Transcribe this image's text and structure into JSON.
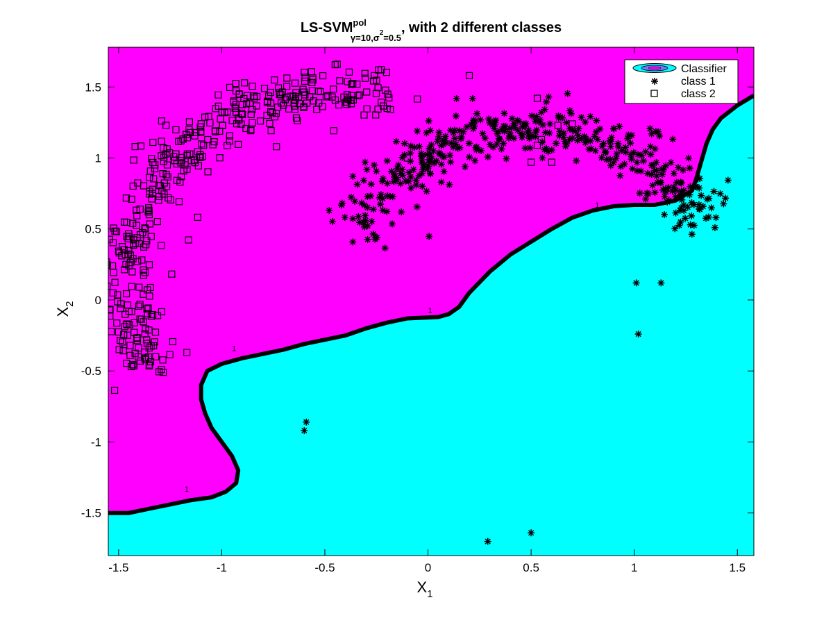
{
  "chart_data": {
    "type": "scatter",
    "title": {
      "main": "LS-SVM",
      "superscript": "pol",
      "subscript": "γ=10,σ",
      "sub_superscript": "2",
      "sub_tail": "=0.5",
      "rest": ", with 2 different classes"
    },
    "xlabel": "X",
    "xlabel_sub": "1",
    "ylabel": "X",
    "ylabel_sub": "2",
    "xlim": [
      -1.55,
      1.58
    ],
    "ylim": [
      -1.8,
      1.78
    ],
    "xticks": [
      -1.5,
      -1,
      -0.5,
      0,
      0.5,
      1,
      1.5
    ],
    "yticks": [
      -1.5,
      -1,
      -0.5,
      0,
      0.5,
      1,
      1.5
    ],
    "xtick_labels": [
      "-1.5",
      "-1",
      "-0.5",
      "0",
      "0.5",
      "1",
      "1.5"
    ],
    "ytick_labels": [
      "-1.5",
      "-1",
      "-0.5",
      "0",
      "0.5",
      "1",
      "1.5"
    ],
    "grid": false,
    "legend_position": "top-right",
    "legend": [
      "Classifier",
      "class 1",
      "class 2"
    ],
    "region_colors": {
      "class2_region": "#ff00ff",
      "class1_region": "#00ffff",
      "boundary": "#000000"
    },
    "contour_label": "1",
    "contour_label_positions": [
      [
        -1.17,
        -1.35
      ],
      [
        -0.94,
        -0.36
      ],
      [
        0.01,
        -0.09
      ],
      [
        0.82,
        0.65
      ]
    ],
    "decision_boundary": [
      [
        -1.55,
        -1.5
      ],
      [
        -1.45,
        -1.5
      ],
      [
        -1.35,
        -1.47
      ],
      [
        -1.25,
        -1.44
      ],
      [
        -1.15,
        -1.41
      ],
      [
        -1.05,
        -1.39
      ],
      [
        -0.98,
        -1.35
      ],
      [
        -0.93,
        -1.29
      ],
      [
        -0.92,
        -1.2
      ],
      [
        -0.95,
        -1.1
      ],
      [
        -1.0,
        -1.0
      ],
      [
        -1.05,
        -0.9
      ],
      [
        -1.08,
        -0.8
      ],
      [
        -1.1,
        -0.7
      ],
      [
        -1.1,
        -0.6
      ],
      [
        -1.07,
        -0.5
      ],
      [
        -1.0,
        -0.45
      ],
      [
        -0.9,
        -0.41
      ],
      [
        -0.8,
        -0.38
      ],
      [
        -0.7,
        -0.35
      ],
      [
        -0.6,
        -0.31
      ],
      [
        -0.5,
        -0.28
      ],
      [
        -0.4,
        -0.25
      ],
      [
        -0.3,
        -0.2
      ],
      [
        -0.2,
        -0.16
      ],
      [
        -0.1,
        -0.13
      ],
      [
        0.05,
        -0.12
      ],
      [
        0.1,
        -0.1
      ],
      [
        0.15,
        -0.05
      ],
      [
        0.2,
        0.05
      ],
      [
        0.3,
        0.2
      ],
      [
        0.4,
        0.32
      ],
      [
        0.5,
        0.41
      ],
      [
        0.6,
        0.5
      ],
      [
        0.7,
        0.58
      ],
      [
        0.8,
        0.63
      ],
      [
        0.9,
        0.66
      ],
      [
        1.0,
        0.67
      ],
      [
        1.1,
        0.67
      ],
      [
        1.2,
        0.7
      ],
      [
        1.28,
        0.77
      ],
      [
        1.3,
        0.85
      ],
      [
        1.32,
        0.95
      ],
      [
        1.35,
        1.1
      ],
      [
        1.38,
        1.2
      ],
      [
        1.42,
        1.28
      ],
      [
        1.5,
        1.37
      ],
      [
        1.58,
        1.44
      ]
    ],
    "series": [
      {
        "name": "class 1",
        "marker": "asterisk",
        "arcs": [
          {
            "center": [
              0.5,
              -0.12
            ],
            "rx": 0.98,
            "ry": 1.33,
            "t_start": 2.7,
            "t_end": 0.55,
            "spread": 0.09,
            "count": 420,
            "seed": 11
          }
        ],
        "extra_points": [
          [
            -0.59,
            -0.86
          ],
          [
            -0.6,
            -0.92
          ],
          [
            0.29,
            -1.7
          ],
          [
            1.01,
            0.12
          ],
          [
            1.13,
            0.12
          ],
          [
            1.02,
            -0.24
          ],
          [
            0.5,
            -1.64
          ]
        ]
      },
      {
        "name": "class 2",
        "marker": "square",
        "arcs": [
          {
            "center": [
              -0.5,
              0.12
            ],
            "rx": 0.95,
            "ry": 1.32,
            "t_start": 3.6,
            "t_end": 1.2,
            "spread": 0.09,
            "count": 420,
            "seed": 23
          }
        ],
        "extra_points": [
          [
            -0.44,
            1.66
          ],
          [
            -0.24,
            1.62
          ],
          [
            -0.26,
            1.58
          ],
          [
            0.2,
            1.58
          ],
          [
            0.53,
            1.42
          ],
          [
            0.7,
            1.24
          ],
          [
            0.63,
            1.23
          ],
          [
            0.53,
            1.09
          ],
          [
            0.5,
            0.97
          ],
          [
            0.6,
            0.97
          ],
          [
            0.55,
            1.13
          ],
          [
            -1.45,
            0.24
          ],
          [
            -1.38,
            0.04
          ],
          [
            -1.42,
            1.08
          ],
          [
            -1.27,
            1.23
          ],
          [
            -0.1,
            1.0
          ]
        ]
      }
    ]
  }
}
